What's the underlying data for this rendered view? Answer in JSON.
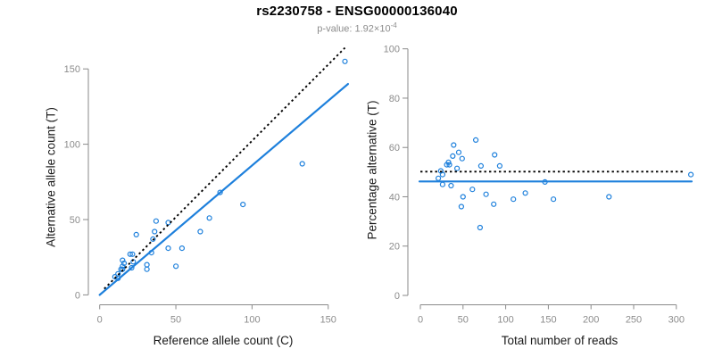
{
  "header": {
    "title": "rs2230758 - ENSG00000136040",
    "pvalue_text": "p-value: 1.92×10",
    "pvalue_exponent": "-4"
  },
  "colors": {
    "point_blue": "#1E80DC",
    "line_blue": "#1E80DC",
    "dotted_black": "#000000",
    "axis_gray": "#8A8A8A",
    "tick_label_gray": "#8C8C8C",
    "axis_title_black": "#1A1A1A"
  },
  "chart_data": [
    {
      "type": "scatter",
      "title": "",
      "xlabel": "Reference allele count (C)",
      "ylabel": "Alternative allele count (T)",
      "xticks": [
        0,
        50,
        100,
        150
      ],
      "yticks": [
        0,
        50,
        100,
        150
      ],
      "xlim": [
        0,
        165
      ],
      "ylim": [
        0,
        165
      ],
      "grid": false,
      "point_color": "#1E80DC",
      "points": [
        [
          10,
          12
        ],
        [
          12,
          11
        ],
        [
          12,
          14
        ],
        [
          14,
          17
        ],
        [
          15,
          17
        ],
        [
          15,
          19
        ],
        [
          15,
          23
        ],
        [
          16,
          21
        ],
        [
          21,
          18
        ],
        [
          20,
          27
        ],
        [
          21.5,
          27
        ],
        [
          22,
          22
        ],
        [
          24,
          40
        ],
        [
          31,
          20
        ],
        [
          31,
          17
        ],
        [
          34,
          28
        ],
        [
          35,
          37
        ],
        [
          36,
          42
        ],
        [
          37,
          49
        ],
        [
          45,
          48
        ],
        [
          45,
          31
        ],
        [
          50,
          19
        ],
        [
          54,
          31
        ],
        [
          66,
          42
        ],
        [
          72,
          51
        ],
        [
          79,
          68
        ],
        [
          94,
          60
        ],
        [
          133,
          87
        ],
        [
          161,
          155
        ]
      ],
      "lines": [
        {
          "name": "identity-line",
          "style": "dotted",
          "color": "#000000",
          "x1": 3,
          "y1": 4,
          "x2": 161,
          "y2": 164
        },
        {
          "name": "regression-line",
          "style": "solid",
          "color": "#1E80DC",
          "x1": 0,
          "y1": 0,
          "x2": 163,
          "y2": 140
        }
      ]
    },
    {
      "type": "scatter",
      "title": "",
      "xlabel": "Total number of reads",
      "ylabel": "Percentage alternative (T)",
      "xticks": [
        0,
        50,
        100,
        150,
        200,
        250,
        300
      ],
      "yticks": [
        0,
        20,
        40,
        60,
        80,
        100
      ],
      "xlim": [
        0,
        326
      ],
      "ylim": [
        0,
        100
      ],
      "grid": false,
      "point_color": "#1E80DC",
      "points": [
        [
          21,
          47.5
        ],
        [
          24,
          50.5
        ],
        [
          26,
          49
        ],
        [
          26,
          45
        ],
        [
          31,
          53
        ],
        [
          33,
          54
        ],
        [
          34,
          53
        ],
        [
          36,
          44.5
        ],
        [
          38,
          56.5
        ],
        [
          39,
          61
        ],
        [
          43,
          51.5
        ],
        [
          45,
          58
        ],
        [
          48,
          36
        ],
        [
          49,
          55.5
        ],
        [
          50,
          40
        ],
        [
          61,
          43
        ],
        [
          65,
          63
        ],
        [
          70,
          27.5
        ],
        [
          71,
          52.5
        ],
        [
          77,
          41
        ],
        [
          86,
          37
        ],
        [
          87,
          57
        ],
        [
          93,
          52.5
        ],
        [
          109,
          39
        ],
        [
          123,
          41.5
        ],
        [
          146,
          46
        ],
        [
          156,
          39
        ],
        [
          221,
          40
        ],
        [
          317,
          49
        ]
      ],
      "lines": [
        {
          "name": "null-line",
          "style": "dotted",
          "color": "#000000",
          "x1": 0,
          "y1": 50.2,
          "x2": 308,
          "y2": 50.2
        },
        {
          "name": "regression-line",
          "style": "solid",
          "color": "#1E80DC",
          "x1": -1,
          "y1": 46.2,
          "x2": 318,
          "y2": 46.2
        }
      ]
    }
  ]
}
